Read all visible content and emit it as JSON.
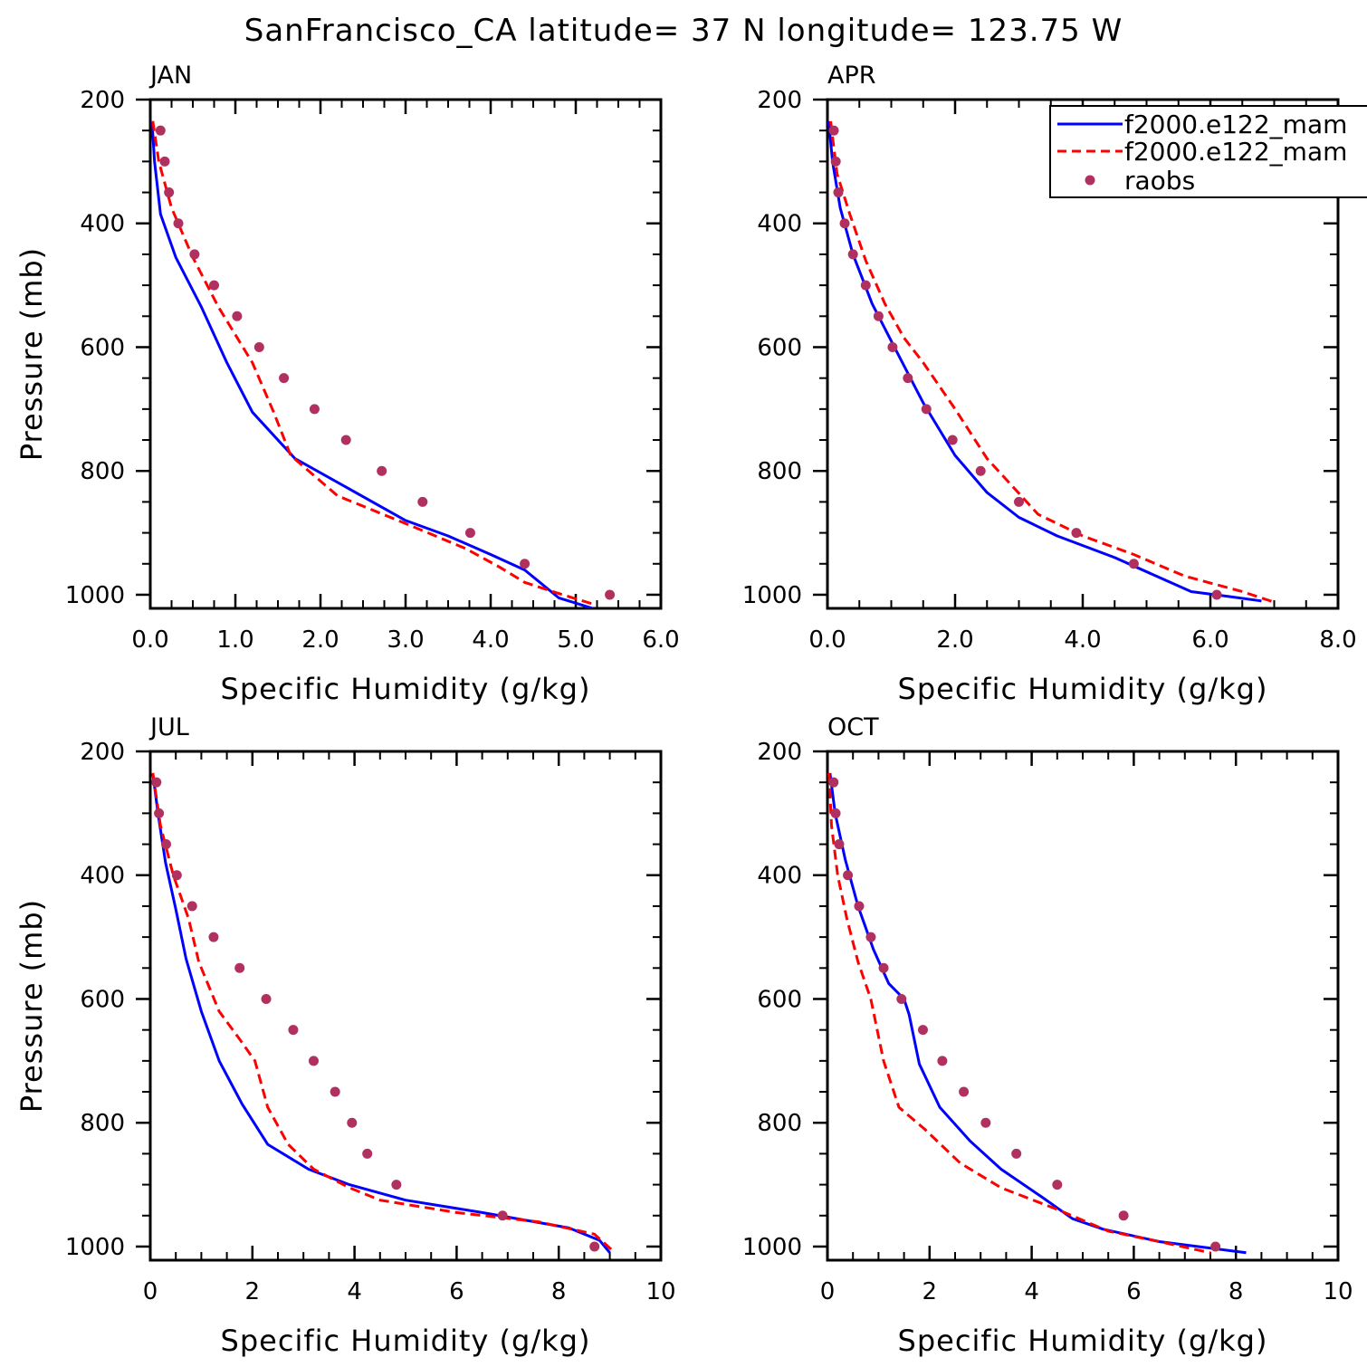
{
  "figure": {
    "title": "SanFrancisco_CA  latitude= 37 N longitude= 123.75 W"
  },
  "legend": {
    "entries": [
      {
        "label": "f2000.e122_mam",
        "style": "solid",
        "color": "#0000ff"
      },
      {
        "label": "f2000.e122_mam",
        "style": "dashed",
        "color": "#ff0000"
      },
      {
        "label": "raobs",
        "style": "marker",
        "color": "#b03060"
      }
    ]
  },
  "chart_data": [
    {
      "type": "line",
      "title": "JAN",
      "xlabel": "Specific Humidity (g/kg)",
      "ylabel": "Pressure (mb)",
      "xlim": [
        0,
        6
      ],
      "ylim": [
        1000,
        200
      ],
      "xticks": [
        "0.0",
        "1.0",
        "2.0",
        "3.0",
        "4.0",
        "5.0",
        "6.0"
      ],
      "yticks": [
        "200",
        "400",
        "600",
        "800",
        "1000"
      ],
      "series": [
        {
          "name": "f2000.e122_mam",
          "style": "solid",
          "color": "#0000ff",
          "x": [
            0.02,
            0.05,
            0.12,
            0.3,
            0.6,
            0.9,
            1.2,
            1.7,
            3.0,
            3.5,
            4.0,
            4.4,
            4.8,
            5.2
          ],
          "y": [
            235,
            300,
            385,
            455,
            535,
            625,
            705,
            780,
            880,
            905,
            935,
            960,
            1005,
            1022
          ]
        },
        {
          "name": "f2000.e122_mam",
          "style": "dashed",
          "color": "#ff0000",
          "x": [
            0.03,
            0.1,
            0.25,
            0.5,
            0.8,
            1.2,
            1.45,
            1.65,
            2.2,
            3.0,
            3.7,
            4.1,
            4.4,
            4.8,
            5.2
          ],
          "y": [
            235,
            300,
            375,
            455,
            535,
            625,
            705,
            775,
            840,
            885,
            925,
            955,
            980,
            998,
            1015
          ]
        },
        {
          "name": "raobs",
          "style": "marker",
          "color": "#b03060",
          "x": [
            0.12,
            0.17,
            0.22,
            0.33,
            0.52,
            0.75,
            1.02,
            1.28,
            1.57,
            1.93,
            2.3,
            2.72,
            3.2,
            3.76,
            4.4,
            5.4
          ],
          "y": [
            250,
            300,
            350,
            400,
            450,
            500,
            550,
            600,
            650,
            700,
            750,
            800,
            850,
            900,
            950,
            1000
          ]
        }
      ]
    },
    {
      "type": "line",
      "title": "APR",
      "xlabel": "Specific Humidity (g/kg)",
      "ylabel": "",
      "xlim": [
        0,
        8
      ],
      "ylim": [
        1000,
        200
      ],
      "xticks": [
        "0.0",
        "2.0",
        "4.0",
        "6.0",
        "8.0"
      ],
      "yticks": [
        "200",
        "400",
        "600",
        "800",
        "1000"
      ],
      "series": [
        {
          "name": "f2000.e122_mam",
          "style": "solid",
          "color": "#0000ff",
          "x": [
            0.02,
            0.08,
            0.2,
            0.4,
            0.7,
            1.1,
            1.5,
            2.0,
            2.5,
            3.0,
            3.6,
            4.5,
            5.7,
            6.3,
            6.8
          ],
          "y": [
            235,
            300,
            375,
            450,
            530,
            610,
            690,
            775,
            835,
            875,
            905,
            940,
            995,
            1003,
            1010
          ]
        },
        {
          "name": "f2000.e122_mam",
          "style": "dashed",
          "color": "#ff0000",
          "x": [
            0.05,
            0.15,
            0.35,
            0.6,
            0.9,
            1.2,
            1.5,
            2.0,
            2.5,
            3.3,
            4.0,
            4.8,
            5.6,
            6.5,
            7.0
          ],
          "y": [
            235,
            320,
            385,
            460,
            530,
            585,
            625,
            700,
            780,
            870,
            905,
            935,
            970,
            995,
            1012
          ]
        },
        {
          "name": "raobs",
          "style": "marker",
          "color": "#b03060",
          "x": [
            0.1,
            0.13,
            0.17,
            0.27,
            0.4,
            0.6,
            0.8,
            1.02,
            1.26,
            1.55,
            1.96,
            2.4,
            3.0,
            3.9,
            4.8,
            6.1
          ],
          "y": [
            250,
            300,
            350,
            400,
            450,
            500,
            550,
            600,
            650,
            700,
            750,
            800,
            850,
            900,
            950,
            1000
          ]
        }
      ]
    },
    {
      "type": "line",
      "title": "JUL",
      "xlabel": "Specific Humidity (g/kg)",
      "ylabel": "Pressure (mb)",
      "xlim": [
        0,
        10
      ],
      "ylim": [
        1000,
        200
      ],
      "xticks": [
        "0",
        "2",
        "4",
        "6",
        "8",
        "10"
      ],
      "yticks": [
        "200",
        "400",
        "600",
        "800",
        "1000"
      ],
      "series": [
        {
          "name": "f2000.e122_mam",
          "style": "solid",
          "color": "#0000ff",
          "x": [
            0.05,
            0.15,
            0.3,
            0.5,
            0.7,
            1.0,
            1.35,
            1.8,
            2.3,
            3.1,
            3.9,
            5.0,
            6.5,
            8.2,
            8.8,
            9.0
          ],
          "y": [
            235,
            300,
            380,
            455,
            535,
            620,
            700,
            770,
            835,
            875,
            900,
            925,
            945,
            970,
            990,
            1010
          ]
        },
        {
          "name": "f2000.e122_mam",
          "style": "dashed",
          "color": "#ff0000",
          "x": [
            0.05,
            0.2,
            0.45,
            0.75,
            0.95,
            1.35,
            1.75,
            2.05,
            2.3,
            2.7,
            3.2,
            3.9,
            4.5,
            6.0,
            7.6,
            8.7,
            9.1
          ],
          "y": [
            235,
            320,
            400,
            470,
            540,
            620,
            665,
            700,
            775,
            835,
            875,
            905,
            925,
            945,
            960,
            980,
            1010
          ]
        },
        {
          "name": "raobs",
          "style": "marker",
          "color": "#b03060",
          "x": [
            0.12,
            0.17,
            0.31,
            0.52,
            0.82,
            1.24,
            1.75,
            2.27,
            2.8,
            3.2,
            3.62,
            3.95,
            4.25,
            4.82,
            6.9,
            8.7
          ],
          "y": [
            250,
            300,
            350,
            400,
            450,
            500,
            550,
            600,
            650,
            700,
            750,
            800,
            850,
            900,
            950,
            1000
          ]
        }
      ]
    },
    {
      "type": "line",
      "title": "OCT",
      "xlabel": "Specific Humidity (g/kg)",
      "ylabel": "",
      "xlim": [
        0,
        10
      ],
      "ylim": [
        1000,
        200
      ],
      "xticks": [
        "0",
        "2",
        "4",
        "6",
        "8",
        "10"
      ],
      "yticks": [
        "200",
        "400",
        "600",
        "800",
        "1000"
      ],
      "series": [
        {
          "name": "f2000.e122_mam",
          "style": "solid",
          "color": "#0000ff",
          "x": [
            0.05,
            0.15,
            0.35,
            0.6,
            0.9,
            1.2,
            1.5,
            1.6,
            1.8,
            2.2,
            2.8,
            3.4,
            4.2,
            4.8,
            5.4,
            6.5,
            8.2
          ],
          "y": [
            235,
            300,
            375,
            450,
            520,
            575,
            600,
            625,
            705,
            775,
            830,
            875,
            920,
            955,
            972,
            992,
            1010
          ]
        },
        {
          "name": "f2000.e122_mam",
          "style": "dashed",
          "color": "#ff0000",
          "x": [
            0.03,
            0.08,
            0.2,
            0.38,
            0.6,
            0.85,
            1.1,
            1.4,
            1.9,
            2.6,
            3.4,
            4.5,
            5.5,
            6.5,
            7.5
          ],
          "y": [
            235,
            320,
            400,
            470,
            540,
            600,
            700,
            775,
            810,
            865,
            905,
            940,
            975,
            992,
            1010
          ]
        },
        {
          "name": "raobs",
          "style": "marker",
          "color": "#b03060",
          "x": [
            0.12,
            0.16,
            0.23,
            0.4,
            0.62,
            0.85,
            1.1,
            1.45,
            1.87,
            2.25,
            2.67,
            3.1,
            3.7,
            4.5,
            5.8,
            7.6
          ],
          "y": [
            250,
            300,
            350,
            400,
            450,
            500,
            550,
            600,
            650,
            700,
            750,
            800,
            850,
            900,
            950,
            1000
          ]
        }
      ]
    }
  ]
}
